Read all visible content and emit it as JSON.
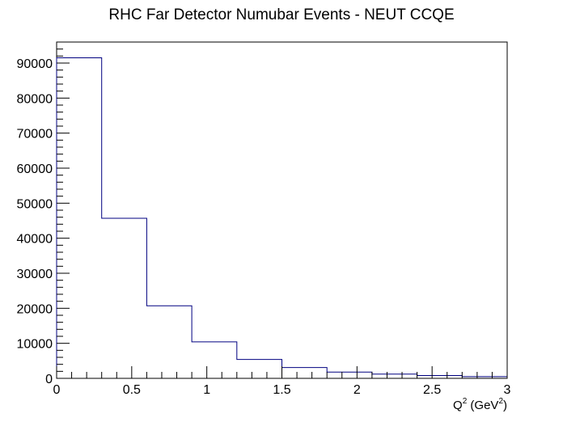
{
  "chart_data": {
    "type": "bar",
    "title": "RHC Far Detector Numubar Events - NEUT CCQE",
    "xlabel": {
      "parts": [
        {
          "text": "Q",
          "sup": false
        },
        {
          "text": "2",
          "sup": true
        },
        {
          "text": " (GeV",
          "sup": false
        },
        {
          "text": "2",
          "sup": true
        },
        {
          "text": ")",
          "sup": false
        }
      ]
    },
    "ylabel": "",
    "xlim": [
      0,
      3
    ],
    "ylim": [
      0,
      96000
    ],
    "x_ticks": [
      "0",
      "0.5",
      "1",
      "1.5",
      "2",
      "2.5",
      "3"
    ],
    "y_ticks": [
      "0",
      "10000",
      "20000",
      "30000",
      "40000",
      "50000",
      "60000",
      "70000",
      "80000",
      "90000"
    ],
    "bin_edges": [
      0,
      0.3,
      0.6,
      0.9,
      1.2,
      1.5,
      1.8,
      2.1,
      2.4,
      2.7,
      3.0
    ],
    "values": [
      91500,
      45700,
      20700,
      10400,
      5400,
      3100,
      1800,
      1200,
      800,
      500
    ],
    "line_color": "#000080",
    "grid": false,
    "legend": false
  }
}
